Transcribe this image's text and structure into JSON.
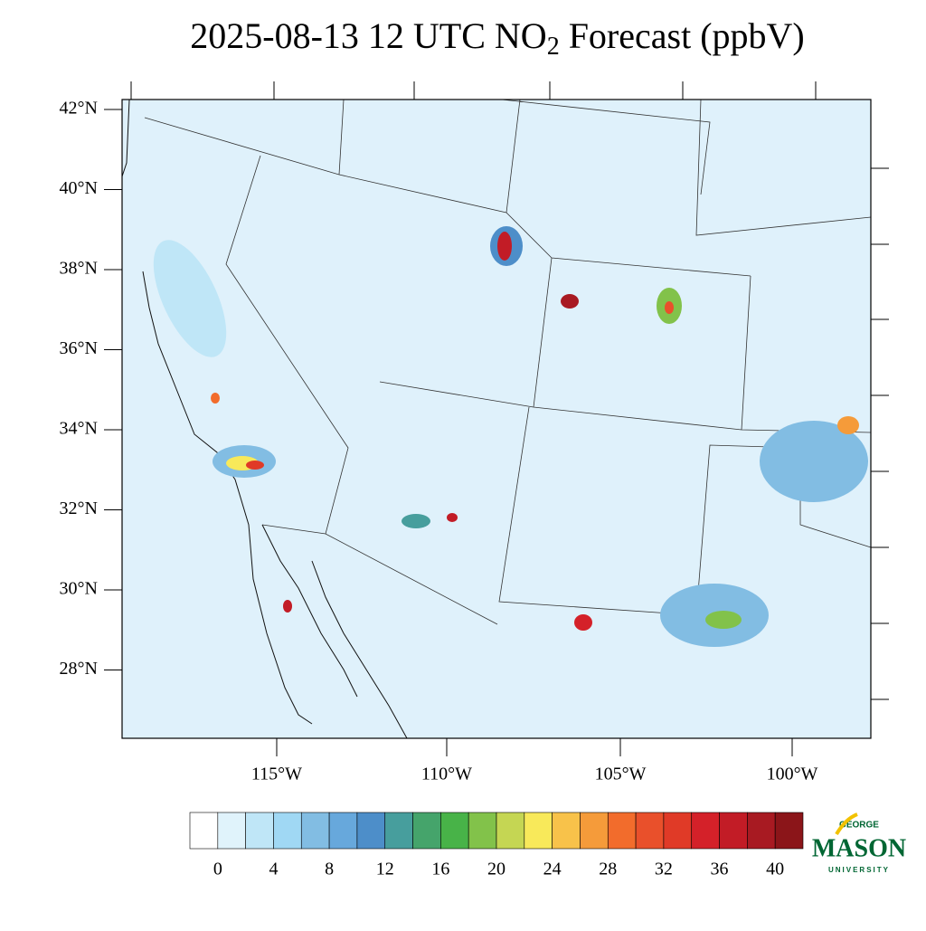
{
  "title": {
    "prefix": "2025-08-13 12 UTC NO",
    "subscript": "2",
    "suffix": " Forecast (ppbV)"
  },
  "lat_labels": [
    "42°N",
    "40°N",
    "38°N",
    "36°N",
    "34°N",
    "32°N",
    "30°N",
    "28°N"
  ],
  "lon_labels": [
    "115°W",
    "110°W",
    "105°W",
    "100°W"
  ],
  "colorbar": {
    "colors": [
      "#ffffff",
      "#e0f3fb",
      "#bfe6f7",
      "#a0d8f4",
      "#82bde3",
      "#67a8dc",
      "#4d8ec9",
      "#479e9d",
      "#45a46b",
      "#48b348",
      "#82c24a",
      "#c5d653",
      "#f8e95a",
      "#f8c24a",
      "#f59b3a",
      "#f26c2c",
      "#e9502b",
      "#e03a27",
      "#d42129",
      "#c21c26",
      "#a81a22",
      "#8b1519"
    ],
    "labels": [
      0,
      4,
      8,
      12,
      16,
      20,
      24,
      28,
      32,
      36,
      40
    ]
  },
  "logo": {
    "top": "GEORGE",
    "main": "MASON",
    "bottom": "UNIVERSITY"
  }
}
